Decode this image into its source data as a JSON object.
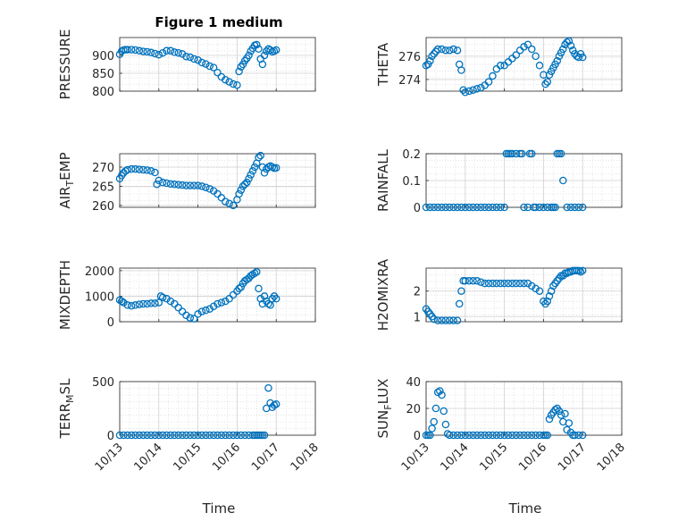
{
  "figure": {
    "title": "Figure 1 medium"
  },
  "colors": {
    "marker": "#0072BD",
    "grid": "#dcdcdc",
    "axis": "#262626"
  },
  "chart_data": [
    {
      "type": "scatter",
      "ylabel": "PRESSURE",
      "ylabel_sub": "",
      "ylim": [
        800,
        950
      ],
      "yticks": [
        "800",
        "850",
        "900"
      ],
      "ytick_values": [
        800,
        850,
        900
      ],
      "xlim": [
        0,
        5
      ],
      "xticks": [
        "10/13",
        "10/14",
        "10/15",
        "10/16",
        "10/17",
        "10/18"
      ],
      "show_xticks": false,
      "x": [
        0,
        0.05,
        0.1,
        0.15,
        0.2,
        0.3,
        0.4,
        0.5,
        0.6,
        0.7,
        0.8,
        0.9,
        1,
        1.1,
        1.2,
        1.3,
        1.4,
        1.5,
        1.6,
        1.7,
        1.8,
        1.9,
        2,
        2.1,
        2.2,
        2.3,
        2.4,
        2.5,
        2.6,
        2.7,
        2.8,
        2.9,
        3,
        3.05,
        3.1,
        3.15,
        3.2,
        3.25,
        3.3,
        3.35,
        3.4,
        3.45,
        3.5,
        3.55,
        3.6,
        3.65,
        3.7,
        3.75,
        3.8,
        3.85,
        3.9,
        3.95,
        4
      ],
      "y": [
        903,
        912,
        915,
        916,
        916,
        916,
        915,
        913,
        911,
        910,
        908,
        905,
        902,
        907,
        913,
        913,
        909,
        907,
        904,
        897,
        895,
        890,
        887,
        880,
        876,
        870,
        866,
        852,
        840,
        832,
        826,
        820,
        817,
        855,
        868,
        875,
        885,
        892,
        900,
        912,
        920,
        928,
        930,
        918,
        890,
        875,
        900,
        912,
        918,
        915,
        910,
        912,
        915
      ]
    },
    {
      "type": "scatter",
      "ylabel": "THETA",
      "ylabel_sub": "",
      "ylim": [
        273,
        277.6
      ],
      "yticks": [
        "274",
        "276"
      ],
      "ytick_values": [
        274,
        276
      ],
      "xlim": [
        0,
        5
      ],
      "xticks": [
        "10/13",
        "10/14",
        "10/15",
        "10/16",
        "10/17",
        "10/18"
      ],
      "show_xticks": false,
      "x": [
        0,
        0.05,
        0.1,
        0.15,
        0.2,
        0.25,
        0.3,
        0.4,
        0.5,
        0.6,
        0.7,
        0.8,
        0.85,
        0.9,
        0.95,
        1,
        1.1,
        1.2,
        1.3,
        1.4,
        1.5,
        1.6,
        1.7,
        1.8,
        1.9,
        2,
        2.1,
        2.2,
        2.3,
        2.4,
        2.5,
        2.6,
        2.7,
        2.8,
        2.9,
        3,
        3.05,
        3.1,
        3.15,
        3.2,
        3.25,
        3.3,
        3.35,
        3.4,
        3.45,
        3.5,
        3.55,
        3.6,
        3.65,
        3.7,
        3.75,
        3.8,
        3.85,
        3.9,
        3.95,
        4
      ],
      "y": [
        275.2,
        275.3,
        275.6,
        276.0,
        276.2,
        276.4,
        276.6,
        276.6,
        276.5,
        276.5,
        276.6,
        276.5,
        275.3,
        274.8,
        273.1,
        272.9,
        273.0,
        273.1,
        273.2,
        273.3,
        273.5,
        273.8,
        274.3,
        274.9,
        275.2,
        275.2,
        275.5,
        275.8,
        276.1,
        276.5,
        276.8,
        277.0,
        276.6,
        276.0,
        275.2,
        274.4,
        273.6,
        273.8,
        274.4,
        274.7,
        275.0,
        275.3,
        275.6,
        276.0,
        276.3,
        276.6,
        277.0,
        277.2,
        277.3,
        276.9,
        276.5,
        276.2,
        276.0,
        275.9,
        276.2,
        275.9
      ]
    },
    {
      "type": "scatter",
      "ylabel": "AIR",
      "ylabel_sub": "T",
      "ylabel_after": "EMP",
      "ylim": [
        259.5,
        273.5
      ],
      "yticks": [
        "260",
        "265",
        "270"
      ],
      "ytick_values": [
        260,
        265,
        270
      ],
      "xlim": [
        0,
        5
      ],
      "xticks": [
        "10/13",
        "10/14",
        "10/15",
        "10/16",
        "10/17",
        "10/18"
      ],
      "show_xticks": false,
      "x": [
        0,
        0.05,
        0.1,
        0.15,
        0.2,
        0.3,
        0.4,
        0.5,
        0.6,
        0.7,
        0.8,
        0.9,
        0.95,
        1,
        1.1,
        1.2,
        1.3,
        1.4,
        1.5,
        1.6,
        1.7,
        1.8,
        1.9,
        2,
        2.1,
        2.2,
        2.3,
        2.4,
        2.5,
        2.6,
        2.7,
        2.8,
        2.9,
        3,
        3.05,
        3.1,
        3.15,
        3.2,
        3.25,
        3.3,
        3.35,
        3.4,
        3.45,
        3.5,
        3.55,
        3.6,
        3.65,
        3.7,
        3.75,
        3.8,
        3.85,
        3.9,
        3.95,
        4
      ],
      "y": [
        267.0,
        267.8,
        268.5,
        269.0,
        269.3,
        269.5,
        269.5,
        269.4,
        269.3,
        269.2,
        269.0,
        268.6,
        265.5,
        266.5,
        266.0,
        265.8,
        265.6,
        265.5,
        265.4,
        265.3,
        265.2,
        265.2,
        265.2,
        265.2,
        265.0,
        264.7,
        264.3,
        263.8,
        263.0,
        262.0,
        261.0,
        260.5,
        260.0,
        261.5,
        263.0,
        264.0,
        265.0,
        265.5,
        266.0,
        267.0,
        268.0,
        269.0,
        270.0,
        271.0,
        272.5,
        273.0,
        270.0,
        268.5,
        269.5,
        270.0,
        270.3,
        270.0,
        269.7,
        269.8
      ]
    },
    {
      "type": "scatter",
      "ylabel": "RAINFALL",
      "ylabel_sub": "",
      "ylim": [
        0,
        0.2
      ],
      "yticks": [
        "0",
        "0.1",
        "0.2"
      ],
      "ytick_values": [
        0,
        0.1,
        0.2
      ],
      "xlim": [
        0,
        5
      ],
      "xticks": [
        "10/13",
        "10/14",
        "10/15",
        "10/16",
        "10/17",
        "10/18"
      ],
      "show_xticks": false,
      "x": [
        0,
        0.1,
        0.2,
        0.3,
        0.4,
        0.5,
        0.6,
        0.7,
        0.8,
        0.9,
        1,
        1.1,
        1.2,
        1.3,
        1.4,
        1.5,
        1.6,
        1.7,
        1.8,
        1.9,
        2,
        2.05,
        2.1,
        2.15,
        2.2,
        2.3,
        2.4,
        2.45,
        2.5,
        2.6,
        2.65,
        2.7,
        2.75,
        2.8,
        2.9,
        3,
        3.1,
        3.2,
        3.25,
        3.3,
        3.35,
        3.4,
        3.45,
        3.5,
        3.6,
        3.7,
        3.8,
        3.9,
        4
      ],
      "y": [
        0,
        0,
        0,
        0,
        0,
        0,
        0,
        0,
        0,
        0,
        0,
        0,
        0,
        0,
        0,
        0,
        0,
        0,
        0,
        0,
        0,
        0.2,
        0.2,
        0.2,
        0.2,
        0.2,
        0.2,
        0.2,
        0,
        0,
        0.2,
        0.2,
        0,
        0,
        0,
        0,
        0,
        0,
        0,
        0,
        0.2,
        0.2,
        0.2,
        0.1,
        0,
        0,
        0,
        0,
        0
      ]
    },
    {
      "type": "scatter",
      "ylabel": "MIXDEPTH",
      "ylabel_sub": "",
      "ylim": [
        0,
        2100
      ],
      "yticks": [
        "0",
        "1000",
        "2000"
      ],
      "ytick_values": [
        0,
        1000,
        2000
      ],
      "xlim": [
        0,
        5
      ],
      "xticks": [
        "10/13",
        "10/14",
        "10/15",
        "10/16",
        "10/17",
        "10/18"
      ],
      "show_xticks": false,
      "x": [
        0,
        0.05,
        0.1,
        0.2,
        0.3,
        0.4,
        0.5,
        0.6,
        0.7,
        0.8,
        0.9,
        1,
        1.05,
        1.1,
        1.2,
        1.3,
        1.4,
        1.5,
        1.6,
        1.7,
        1.8,
        1.9,
        2,
        2.1,
        2.2,
        2.3,
        2.4,
        2.5,
        2.6,
        2.7,
        2.8,
        2.9,
        3,
        3.05,
        3.1,
        3.15,
        3.2,
        3.25,
        3.3,
        3.35,
        3.4,
        3.45,
        3.5,
        3.55,
        3.6,
        3.65,
        3.7,
        3.75,
        3.8,
        3.85,
        3.9,
        3.95,
        4
      ],
      "y": [
        850,
        800,
        750,
        650,
        620,
        650,
        680,
        700,
        700,
        720,
        720,
        750,
        1000,
        950,
        900,
        800,
        700,
        550,
        400,
        250,
        150,
        120,
        300,
        400,
        450,
        500,
        600,
        700,
        750,
        800,
        900,
        1050,
        1200,
        1300,
        1350,
        1500,
        1600,
        1650,
        1700,
        1800,
        1850,
        1900,
        1950,
        1300,
        900,
        700,
        1000,
        800,
        700,
        650,
        900,
        1000,
        900
      ]
    },
    {
      "type": "scatter",
      "ylabel": "H2OMIXRA",
      "ylabel_sub": "",
      "ylim": [
        0.8,
        2.9
      ],
      "yticks": [
        "1",
        "2"
      ],
      "ytick_values": [
        1,
        2
      ],
      "xlim": [
        0,
        5
      ],
      "xticks": [
        "10/13",
        "10/14",
        "10/15",
        "10/16",
        "10/17",
        "10/18"
      ],
      "show_xticks": false,
      "x": [
        0,
        0.05,
        0.1,
        0.15,
        0.2,
        0.3,
        0.4,
        0.5,
        0.6,
        0.7,
        0.8,
        0.85,
        0.9,
        0.95,
        1,
        1.1,
        1.2,
        1.3,
        1.4,
        1.5,
        1.6,
        1.7,
        1.8,
        1.9,
        2,
        2.1,
        2.2,
        2.3,
        2.4,
        2.5,
        2.6,
        2.7,
        2.8,
        2.9,
        3,
        3.05,
        3.1,
        3.15,
        3.2,
        3.25,
        3.3,
        3.35,
        3.4,
        3.45,
        3.5,
        3.55,
        3.6,
        3.65,
        3.7,
        3.75,
        3.8,
        3.85,
        3.9,
        3.95,
        4
      ],
      "y": [
        1.3,
        1.2,
        1.1,
        1.0,
        0.9,
        0.85,
        0.85,
        0.85,
        0.85,
        0.85,
        0.85,
        1.5,
        2.0,
        2.4,
        2.4,
        2.4,
        2.4,
        2.4,
        2.35,
        2.3,
        2.3,
        2.3,
        2.3,
        2.3,
        2.3,
        2.3,
        2.3,
        2.3,
        2.3,
        2.3,
        2.3,
        2.2,
        2.1,
        2.0,
        1.6,
        1.5,
        1.6,
        1.8,
        2.0,
        2.2,
        2.3,
        2.4,
        2.5,
        2.6,
        2.6,
        2.7,
        2.7,
        2.75,
        2.75,
        2.8,
        2.8,
        2.8,
        2.8,
        2.75,
        2.8
      ]
    },
    {
      "type": "scatter",
      "ylabel": "TERR",
      "ylabel_sub": "M",
      "ylabel_after": "SL",
      "ylim": [
        0,
        500
      ],
      "yticks": [
        "0",
        "500"
      ],
      "ytick_values": [
        0,
        500
      ],
      "xlim": [
        0,
        5
      ],
      "xticks": [
        "10/13",
        "10/14",
        "10/15",
        "10/16",
        "10/17",
        "10/18"
      ],
      "show_xticks": true,
      "x": [
        0,
        0.1,
        0.2,
        0.3,
        0.4,
        0.5,
        0.6,
        0.7,
        0.8,
        0.9,
        1,
        1.1,
        1.2,
        1.3,
        1.4,
        1.5,
        1.6,
        1.7,
        1.8,
        1.9,
        2,
        2.1,
        2.2,
        2.3,
        2.4,
        2.5,
        2.6,
        2.7,
        2.8,
        2.9,
        3,
        3.1,
        3.2,
        3.3,
        3.4,
        3.45,
        3.5,
        3.55,
        3.6,
        3.65,
        3.7,
        3.75,
        3.8,
        3.85,
        3.9,
        3.95,
        4
      ],
      "y": [
        0,
        0,
        0,
        0,
        0,
        0,
        0,
        0,
        0,
        0,
        0,
        0,
        0,
        0,
        0,
        0,
        0,
        0,
        0,
        0,
        0,
        0,
        0,
        0,
        0,
        0,
        0,
        0,
        0,
        0,
        0,
        0,
        0,
        0,
        0,
        0,
        0,
        0,
        0,
        0,
        0,
        250,
        440,
        300,
        260,
        280,
        290
      ]
    },
    {
      "type": "scatter",
      "ylabel": "SUN",
      "ylabel_sub": "F",
      "ylabel_after": "LUX",
      "ylim": [
        0,
        40
      ],
      "yticks": [
        "0",
        "20",
        "40"
      ],
      "ytick_values": [
        0,
        20,
        40
      ],
      "xlim": [
        0,
        5
      ],
      "xticks": [
        "10/13",
        "10/14",
        "10/15",
        "10/16",
        "10/17",
        "10/18"
      ],
      "show_xticks": true,
      "x": [
        0,
        0.05,
        0.1,
        0.15,
        0.2,
        0.25,
        0.3,
        0.35,
        0.4,
        0.45,
        0.5,
        0.55,
        0.6,
        0.7,
        0.8,
        0.9,
        1,
        1.1,
        1.2,
        1.3,
        1.4,
        1.5,
        1.6,
        1.7,
        1.8,
        1.9,
        2,
        2.1,
        2.2,
        2.3,
        2.4,
        2.5,
        2.6,
        2.7,
        2.8,
        2.9,
        3,
        3.05,
        3.1,
        3.15,
        3.2,
        3.25,
        3.3,
        3.35,
        3.4,
        3.45,
        3.5,
        3.55,
        3.6,
        3.65,
        3.7,
        3.75,
        3.8,
        3.9,
        4
      ],
      "y": [
        0,
        0,
        0,
        5,
        10,
        20,
        32,
        33,
        30,
        18,
        8,
        1,
        0,
        0,
        0,
        0,
        0,
        0,
        0,
        0,
        0,
        0,
        0,
        0,
        0,
        0,
        0,
        0,
        0,
        0,
        0,
        0,
        0,
        0,
        0,
        0,
        0,
        0,
        0,
        12,
        15,
        17,
        19,
        20,
        18,
        15,
        10,
        16,
        4,
        9,
        2,
        0,
        0,
        0,
        0
      ]
    }
  ],
  "xlabel": "Time"
}
